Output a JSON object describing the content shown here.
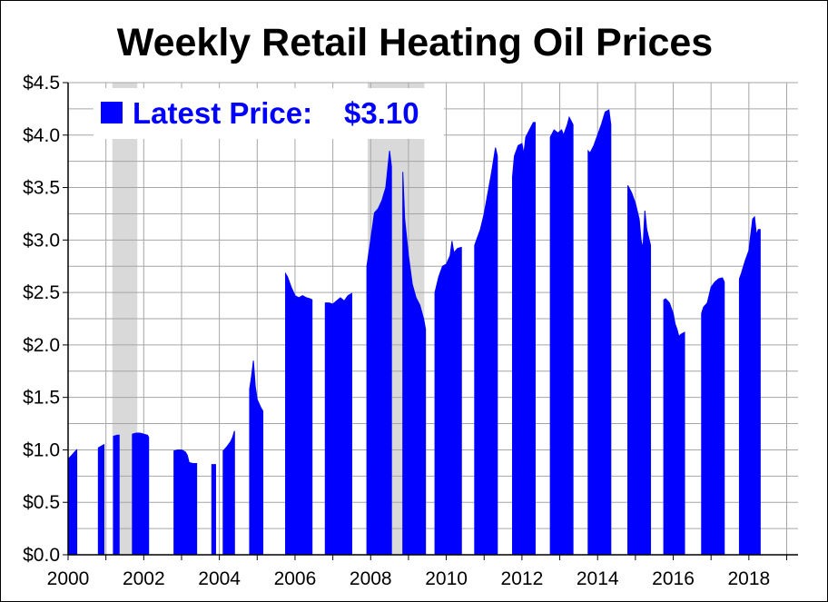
{
  "chart_data": {
    "type": "bar",
    "title": "Weekly Retail Heating Oil Prices",
    "xlabel": "",
    "ylabel": "",
    "xlim": [
      2000,
      2019.3
    ],
    "ylim": [
      0,
      4.5
    ],
    "y_ticks": [
      0.0,
      0.5,
      1.0,
      1.5,
      2.0,
      2.5,
      3.0,
      3.5,
      4.0,
      4.5
    ],
    "y_tick_labels": [
      "$0.0",
      "$0.5",
      "$1.0",
      "$1.5",
      "$2.0",
      "$2.5",
      "$3.0",
      "$3.5",
      "$4.0",
      "$4.5"
    ],
    "x_ticks": [
      2000,
      2002,
      2004,
      2006,
      2008,
      2010,
      2012,
      2014,
      2016,
      2018
    ],
    "x_tick_labels": [
      "2000",
      "2002",
      "2004",
      "2006",
      "2008",
      "2010",
      "2012",
      "2014",
      "2016",
      "2018"
    ],
    "grid": true,
    "bar_color": "#0000ff",
    "recession_color": "#d9d9d9",
    "recession_periods": [
      [
        2001.17,
        2001.83
      ],
      [
        2007.92,
        2009.42
      ]
    ],
    "legend": {
      "label": "Latest Price:",
      "value": "$3.10",
      "color": "#0000ff",
      "placement": "top-left"
    },
    "series": [
      {
        "segments": [
          [
            [
              2000.0,
              0.91
            ],
            [
              2000.1,
              0.95
            ],
            [
              2000.2,
              0.99
            ],
            [
              2000.23,
              1.0
            ]
          ],
          [
            [
              2000.8,
              1.02
            ],
            [
              2000.9,
              1.04
            ],
            [
              2000.95,
              1.05
            ]
          ],
          [
            [
              2001.2,
              1.13
            ],
            [
              2001.3,
              1.14
            ],
            [
              2001.35,
              1.14
            ]
          ],
          [
            [
              2001.7,
              1.15
            ],
            [
              2001.8,
              1.16
            ],
            [
              2001.9,
              1.16
            ],
            [
              2002.0,
              1.15
            ],
            [
              2002.1,
              1.14
            ],
            [
              2002.13,
              1.12
            ]
          ],
          [
            [
              2002.8,
              0.99
            ],
            [
              2002.9,
              1.0
            ],
            [
              2003.0,
              1.0
            ],
            [
              2003.1,
              0.98
            ],
            [
              2003.15,
              0.95
            ],
            [
              2003.2,
              0.88
            ],
            [
              2003.3,
              0.87
            ],
            [
              2003.4,
              0.87
            ]
          ],
          [
            [
              2003.8,
              0.86
            ],
            [
              2003.9,
              0.86
            ]
          ],
          [
            [
              2004.1,
              0.99
            ],
            [
              2004.2,
              1.03
            ],
            [
              2004.3,
              1.08
            ],
            [
              2004.35,
              1.12
            ],
            [
              2004.4,
              1.18
            ]
          ],
          [
            [
              2004.8,
              1.58
            ],
            [
              2004.85,
              1.7
            ],
            [
              2004.9,
              1.85
            ],
            [
              2004.95,
              1.6
            ],
            [
              2005.0,
              1.48
            ],
            [
              2005.1,
              1.4
            ],
            [
              2005.15,
              1.37
            ]
          ],
          [
            [
              2005.75,
              2.68
            ],
            [
              2005.8,
              2.65
            ],
            [
              2005.9,
              2.55
            ],
            [
              2006.0,
              2.47
            ],
            [
              2006.1,
              2.45
            ],
            [
              2006.2,
              2.47
            ],
            [
              2006.3,
              2.45
            ],
            [
              2006.4,
              2.44
            ],
            [
              2006.45,
              2.43
            ]
          ],
          [
            [
              2006.8,
              2.4
            ],
            [
              2006.9,
              2.4
            ],
            [
              2007.0,
              2.39
            ],
            [
              2007.1,
              2.42
            ],
            [
              2007.2,
              2.45
            ],
            [
              2007.3,
              2.42
            ],
            [
              2007.4,
              2.47
            ],
            [
              2007.5,
              2.49
            ]
          ],
          [
            [
              2007.9,
              2.75
            ],
            [
              2008.0,
              3.0
            ],
            [
              2008.1,
              3.26
            ],
            [
              2008.2,
              3.3
            ],
            [
              2008.3,
              3.38
            ],
            [
              2008.4,
              3.5
            ],
            [
              2008.5,
              3.85
            ],
            [
              2008.55,
              3.7
            ]
          ],
          [
            [
              2008.85,
              3.65
            ],
            [
              2008.9,
              3.2
            ],
            [
              2009.0,
              2.85
            ],
            [
              2009.1,
              2.58
            ],
            [
              2009.2,
              2.45
            ],
            [
              2009.3,
              2.38
            ],
            [
              2009.4,
              2.25
            ],
            [
              2009.45,
              2.15
            ]
          ],
          [
            [
              2009.7,
              2.5
            ],
            [
              2009.8,
              2.65
            ],
            [
              2009.9,
              2.75
            ],
            [
              2010.0,
              2.77
            ],
            [
              2010.1,
              2.85
            ],
            [
              2010.15,
              2.99
            ],
            [
              2010.2,
              2.88
            ],
            [
              2010.3,
              2.92
            ],
            [
              2010.4,
              2.93
            ]
          ],
          [
            [
              2010.75,
              2.95
            ],
            [
              2010.9,
              3.1
            ],
            [
              2011.0,
              3.25
            ],
            [
              2011.1,
              3.45
            ],
            [
              2011.2,
              3.65
            ],
            [
              2011.3,
              3.88
            ],
            [
              2011.35,
              3.8
            ]
          ],
          [
            [
              2011.75,
              3.6
            ],
            [
              2011.8,
              3.8
            ],
            [
              2011.9,
              3.9
            ],
            [
              2012.0,
              3.92
            ],
            [
              2012.05,
              3.82
            ],
            [
              2012.1,
              3.98
            ],
            [
              2012.2,
              4.05
            ],
            [
              2012.3,
              4.12
            ],
            [
              2012.35,
              4.12
            ]
          ],
          [
            [
              2012.75,
              3.98
            ],
            [
              2012.85,
              4.05
            ],
            [
              2012.95,
              4.02
            ],
            [
              2013.05,
              4.05
            ],
            [
              2013.1,
              4.0
            ],
            [
              2013.2,
              4.1
            ],
            [
              2013.25,
              4.17
            ],
            [
              2013.35,
              4.1
            ]
          ],
          [
            [
              2013.75,
              3.85
            ],
            [
              2013.8,
              3.83
            ],
            [
              2013.9,
              3.9
            ],
            [
              2014.0,
              4.0
            ],
            [
              2014.1,
              4.1
            ],
            [
              2014.2,
              4.22
            ],
            [
              2014.3,
              4.24
            ],
            [
              2014.35,
              4.1
            ]
          ],
          [
            [
              2014.8,
              3.52
            ],
            [
              2014.9,
              3.45
            ],
            [
              2015.0,
              3.35
            ],
            [
              2015.1,
              3.2
            ],
            [
              2015.15,
              3.0
            ],
            [
              2015.2,
              2.92
            ],
            [
              2015.25,
              3.28
            ],
            [
              2015.3,
              3.1
            ],
            [
              2015.4,
              2.95
            ]
          ],
          [
            [
              2015.75,
              2.43
            ],
            [
              2015.8,
              2.44
            ],
            [
              2015.9,
              2.4
            ],
            [
              2016.0,
              2.3
            ],
            [
              2016.05,
              2.2
            ],
            [
              2016.1,
              2.15
            ],
            [
              2016.15,
              2.08
            ],
            [
              2016.2,
              2.1
            ],
            [
              2016.3,
              2.12
            ]
          ],
          [
            [
              2016.75,
              2.3
            ],
            [
              2016.8,
              2.36
            ],
            [
              2016.9,
              2.4
            ],
            [
              2017.0,
              2.55
            ],
            [
              2017.1,
              2.6
            ],
            [
              2017.2,
              2.63
            ],
            [
              2017.3,
              2.64
            ],
            [
              2017.35,
              2.6
            ]
          ],
          [
            [
              2017.75,
              2.63
            ],
            [
              2017.8,
              2.68
            ],
            [
              2017.9,
              2.8
            ],
            [
              2018.0,
              2.9
            ],
            [
              2018.05,
              3.05
            ],
            [
              2018.1,
              3.2
            ],
            [
              2018.15,
              3.22
            ],
            [
              2018.2,
              3.05
            ],
            [
              2018.25,
              3.1
            ],
            [
              2018.3,
              3.1
            ]
          ]
        ]
      }
    ]
  }
}
